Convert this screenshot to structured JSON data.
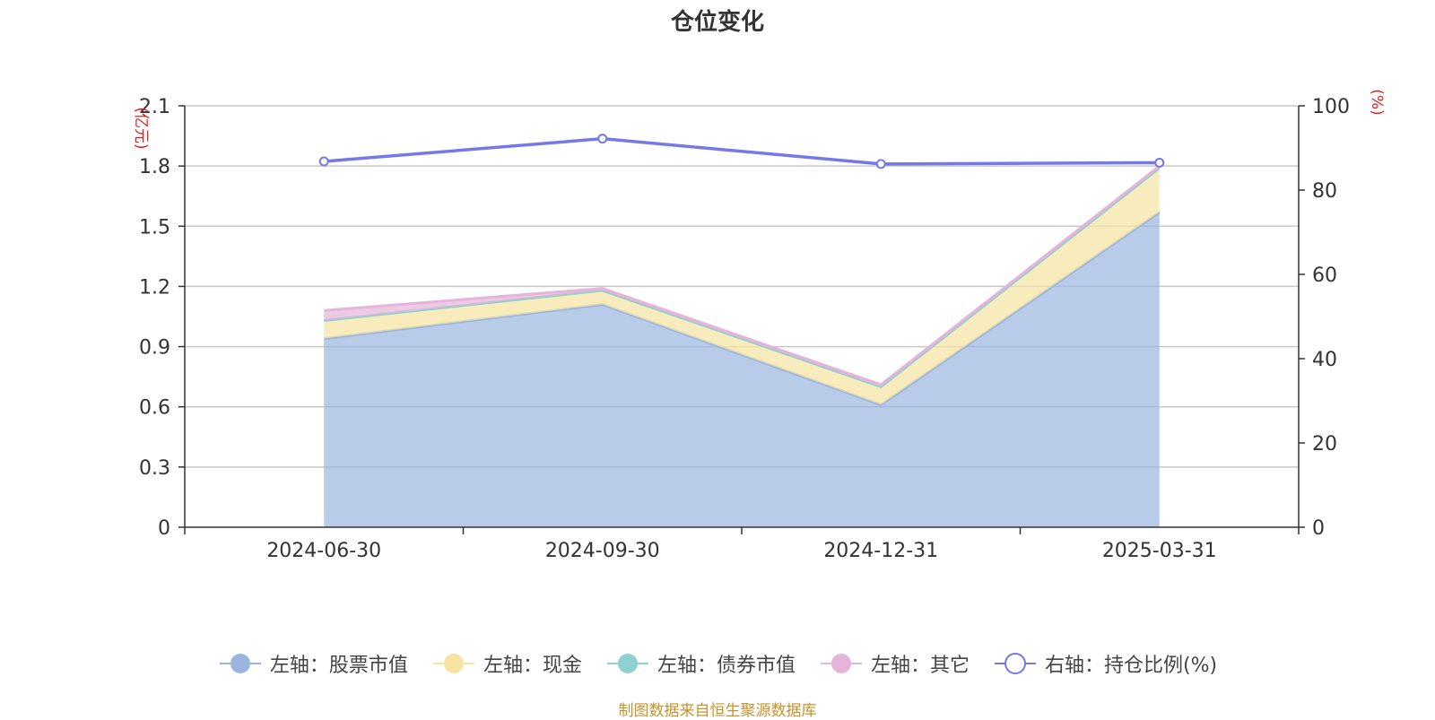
{
  "title": "仓位变化",
  "source_note": "制图数据来自恒生聚源数据库",
  "colors": {
    "stock": "#9ab5e0",
    "cash": "#f7e4a0",
    "bond": "#8fd1d1",
    "other": "#e6b4d8",
    "ratio": "#7579e7",
    "axis_unit": "#e02020"
  },
  "chart_data": {
    "type": "area",
    "categories": [
      "2024-06-30",
      "2024-09-30",
      "2024-12-31",
      "2025-03-31"
    ],
    "left_axis": {
      "unit": "(亿元)",
      "ylim": [
        0,
        2.1
      ],
      "ticks": [
        "0",
        "0.3",
        "0.6",
        "0.9",
        "1.2",
        "1.5",
        "1.8",
        "2.1"
      ]
    },
    "right_axis": {
      "unit": "(%)",
      "ylim": [
        0,
        100
      ],
      "ticks": [
        "0",
        "20",
        "40",
        "60",
        "80",
        "100"
      ]
    },
    "series": [
      {
        "name": "左轴：股票市值",
        "axis": "left",
        "type": "area",
        "color_key": "stock",
        "values": [
          0.94,
          1.11,
          0.61,
          1.57
        ]
      },
      {
        "name": "左轴：现金",
        "axis": "left",
        "type": "area",
        "color_key": "cash",
        "values": [
          0.09,
          0.07,
          0.09,
          0.22
        ]
      },
      {
        "name": "左轴：债券市值",
        "axis": "left",
        "type": "area",
        "color_key": "bond",
        "values": [
          0,
          0,
          0,
          0
        ]
      },
      {
        "name": "左轴：其它",
        "axis": "left",
        "type": "area",
        "color_key": "other",
        "values": [
          0.05,
          0.01,
          0.01,
          0.01
        ]
      },
      {
        "name": "右轴：持仓比例(%)",
        "axis": "right",
        "type": "line",
        "color_key": "ratio",
        "values": [
          86.8,
          92.2,
          86.2,
          86.5
        ]
      }
    ],
    "grid": true,
    "legend_position": "bottom"
  }
}
